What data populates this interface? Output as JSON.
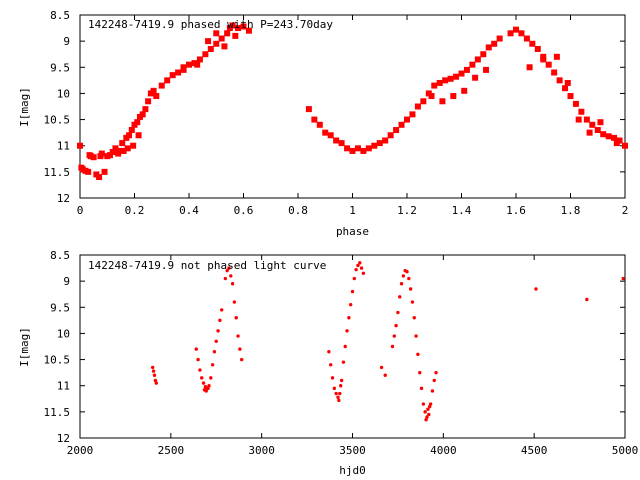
{
  "chart_data": [
    {
      "type": "scatter",
      "title": "142248-7419.9 phased with P=243.70day",
      "xlabel": "phase",
      "ylabel": "I[mag]",
      "xlim": [
        0,
        2
      ],
      "ylim": [
        12,
        8.5
      ],
      "y_inverted": true,
      "grid": false,
      "marker_color": "#ff0000",
      "xticks": [
        "0",
        "0.2",
        "0.4",
        "0.6",
        "0.8",
        "1",
        "1.2",
        "1.4",
        "1.6",
        "1.8",
        "2"
      ],
      "yticks": [
        "8.5",
        "9",
        "9.5",
        "10",
        "10.5",
        "11",
        "11.5",
        "12"
      ],
      "series": [
        {
          "points": [
            [
              0.0,
              11.0
            ],
            [
              0.005,
              11.42
            ],
            [
              0.01,
              11.45
            ],
            [
              0.02,
              11.48
            ],
            [
              0.03,
              11.5
            ],
            [
              0.035,
              11.18
            ],
            [
              0.04,
              11.2
            ],
            [
              0.05,
              11.22
            ],
            [
              0.06,
              11.55
            ],
            [
              0.07,
              11.6
            ],
            [
              0.075,
              11.2
            ],
            [
              0.08,
              11.15
            ],
            [
              0.09,
              11.5
            ],
            [
              0.1,
              11.2
            ],
            [
              0.11,
              11.18
            ],
            [
              0.12,
              11.12
            ],
            [
              0.13,
              11.05
            ],
            [
              0.14,
              11.15
            ],
            [
              0.15,
              11.1
            ],
            [
              0.155,
              10.95
            ],
            [
              0.16,
              11.1
            ],
            [
              0.17,
              10.85
            ],
            [
              0.175,
              11.05
            ],
            [
              0.18,
              10.8
            ],
            [
              0.19,
              10.7
            ],
            [
              0.195,
              11.0
            ],
            [
              0.2,
              10.6
            ],
            [
              0.21,
              10.55
            ],
            [
              0.215,
              10.8
            ],
            [
              0.22,
              10.45
            ],
            [
              0.23,
              10.4
            ],
            [
              0.24,
              10.3
            ],
            [
              0.25,
              10.15
            ],
            [
              0.26,
              10.0
            ],
            [
              0.27,
              9.95
            ],
            [
              0.28,
              10.05
            ],
            [
              0.3,
              9.85
            ],
            [
              0.32,
              9.75
            ],
            [
              0.34,
              9.65
            ],
            [
              0.36,
              9.6
            ],
            [
              0.38,
              9.5
            ],
            [
              0.4,
              9.45
            ],
            [
              0.42,
              9.42
            ],
            [
              0.44,
              9.35
            ],
            [
              0.46,
              9.25
            ],
            [
              0.48,
              9.15
            ],
            [
              0.5,
              9.05
            ],
            [
              0.52,
              8.95
            ],
            [
              0.54,
              8.85
            ],
            [
              0.55,
              8.75
            ],
            [
              0.56,
              8.7
            ],
            [
              0.58,
              8.75
            ],
            [
              0.6,
              8.72
            ],
            [
              0.62,
              8.8
            ],
            [
              0.47,
              9.0
            ],
            [
              0.5,
              8.85
            ],
            [
              0.53,
              9.1
            ],
            [
              0.57,
              8.9
            ],
            [
              0.43,
              9.45
            ],
            [
              0.38,
              9.55
            ],
            [
              0.84,
              10.3
            ],
            [
              0.86,
              10.5
            ],
            [
              0.88,
              10.6
            ],
            [
              0.9,
              10.75
            ],
            [
              0.92,
              10.8
            ],
            [
              0.94,
              10.9
            ],
            [
              0.96,
              10.95
            ],
            [
              0.98,
              11.05
            ],
            [
              1.0,
              11.1
            ],
            [
              1.02,
              11.05
            ],
            [
              1.04,
              11.1
            ],
            [
              1.06,
              11.05
            ],
            [
              1.08,
              11.0
            ],
            [
              1.1,
              10.95
            ],
            [
              1.12,
              10.9
            ],
            [
              1.14,
              10.8
            ],
            [
              1.16,
              10.7
            ],
            [
              1.18,
              10.6
            ],
            [
              1.2,
              10.5
            ],
            [
              1.22,
              10.4
            ],
            [
              1.24,
              10.25
            ],
            [
              1.26,
              10.15
            ],
            [
              1.28,
              10.0
            ],
            [
              1.3,
              9.85
            ],
            [
              1.32,
              9.8
            ],
            [
              1.34,
              9.75
            ],
            [
              1.36,
              9.72
            ],
            [
              1.38,
              9.68
            ],
            [
              1.4,
              9.62
            ],
            [
              1.42,
              9.55
            ],
            [
              1.44,
              9.45
            ],
            [
              1.46,
              9.35
            ],
            [
              1.48,
              9.25
            ],
            [
              1.5,
              9.12
            ],
            [
              1.52,
              9.05
            ],
            [
              1.54,
              8.95
            ],
            [
              1.29,
              10.05
            ],
            [
              1.33,
              10.15
            ],
            [
              1.37,
              10.05
            ],
            [
              1.41,
              9.95
            ],
            [
              1.45,
              9.7
            ],
            [
              1.49,
              9.55
            ],
            [
              1.58,
              8.85
            ],
            [
              1.6,
              8.78
            ],
            [
              1.62,
              8.85
            ],
            [
              1.64,
              8.95
            ],
            [
              1.66,
              9.05
            ],
            [
              1.68,
              9.15
            ],
            [
              1.7,
              9.3
            ],
            [
              1.72,
              9.45
            ],
            [
              1.74,
              9.6
            ],
            [
              1.76,
              9.75
            ],
            [
              1.78,
              9.9
            ],
            [
              1.8,
              10.05
            ],
            [
              1.82,
              10.2
            ],
            [
              1.84,
              10.35
            ],
            [
              1.86,
              10.5
            ],
            [
              1.88,
              10.6
            ],
            [
              1.9,
              10.7
            ],
            [
              1.92,
              10.78
            ],
            [
              1.94,
              10.82
            ],
            [
              1.96,
              10.85
            ],
            [
              1.98,
              10.9
            ],
            [
              2.0,
              11.0
            ],
            [
              1.65,
              9.5
            ],
            [
              1.7,
              9.35
            ],
            [
              1.75,
              9.3
            ],
            [
              1.79,
              9.8
            ],
            [
              1.83,
              10.5
            ],
            [
              1.87,
              10.75
            ],
            [
              1.91,
              10.55
            ],
            [
              1.97,
              10.95
            ]
          ]
        }
      ]
    },
    {
      "type": "scatter",
      "title": "142248-7419.9 not phased light curve",
      "xlabel": "hjd0",
      "ylabel": "I[mag]",
      "xlim": [
        2000,
        5000
      ],
      "ylim": [
        12,
        8.5
      ],
      "y_inverted": true,
      "grid": false,
      "marker_color": "#ff0000",
      "xticks": [
        "2000",
        "2500",
        "3000",
        "3500",
        "4000",
        "4500",
        "5000"
      ],
      "yticks": [
        "8.5",
        "9",
        "9.5",
        "10",
        "10.5",
        "11",
        "11.5",
        "12"
      ],
      "series": [
        {
          "points": [
            [
              2400,
              10.65
            ],
            [
              2405,
              10.72
            ],
            [
              2410,
              10.8
            ],
            [
              2415,
              10.9
            ],
            [
              2420,
              10.95
            ],
            [
              2640,
              10.3
            ],
            [
              2650,
              10.5
            ],
            [
              2660,
              10.7
            ],
            [
              2670,
              10.85
            ],
            [
              2680,
              10.95
            ],
            [
              2690,
              11.02
            ],
            [
              2700,
              11.05
            ],
            [
              2710,
              11.0
            ],
            [
              2720,
              10.85
            ],
            [
              2730,
              10.6
            ],
            [
              2740,
              10.35
            ],
            [
              2750,
              10.15
            ],
            [
              2760,
              9.95
            ],
            [
              2770,
              9.75
            ],
            [
              2780,
              9.55
            ],
            [
              2800,
              8.95
            ],
            [
              2810,
              8.8
            ],
            [
              2820,
              8.75
            ],
            [
              2830,
              8.9
            ],
            [
              2840,
              9.05
            ],
            [
              2850,
              9.4
            ],
            [
              2860,
              9.7
            ],
            [
              2870,
              10.05
            ],
            [
              2880,
              10.3
            ],
            [
              2890,
              10.5
            ],
            [
              2685,
              11.08
            ],
            [
              2695,
              11.1
            ],
            [
              2705,
              11.05
            ],
            [
              3370,
              10.35
            ],
            [
              3380,
              10.6
            ],
            [
              3390,
              10.85
            ],
            [
              3400,
              11.05
            ],
            [
              3410,
              11.15
            ],
            [
              3420,
              11.22
            ],
            [
              3430,
              11.15
            ],
            [
              3440,
              10.9
            ],
            [
              3450,
              10.55
            ],
            [
              3460,
              10.25
            ],
            [
              3470,
              9.95
            ],
            [
              3480,
              9.7
            ],
            [
              3490,
              9.45
            ],
            [
              3500,
              9.2
            ],
            [
              3510,
              8.95
            ],
            [
              3520,
              8.78
            ],
            [
              3530,
              8.7
            ],
            [
              3540,
              8.65
            ],
            [
              3550,
              8.75
            ],
            [
              3560,
              8.85
            ],
            [
              3425,
              11.28
            ],
            [
              3435,
              11.0
            ],
            [
              3660,
              10.65
            ],
            [
              3680,
              10.8
            ],
            [
              3720,
              10.25
            ],
            [
              3730,
              10.05
            ],
            [
              3740,
              9.85
            ],
            [
              3750,
              9.6
            ],
            [
              3760,
              9.3
            ],
            [
              3770,
              9.05
            ],
            [
              3780,
              8.9
            ],
            [
              3790,
              8.8
            ],
            [
              3800,
              8.82
            ],
            [
              3810,
              8.95
            ],
            [
              3820,
              9.15
            ],
            [
              3830,
              9.4
            ],
            [
              3840,
              9.7
            ],
            [
              3850,
              10.05
            ],
            [
              3860,
              10.4
            ],
            [
              3870,
              10.75
            ],
            [
              3880,
              11.05
            ],
            [
              3890,
              11.35
            ],
            [
              3900,
              11.5
            ],
            [
              3910,
              11.6
            ],
            [
              3920,
              11.55
            ],
            [
              3930,
              11.35
            ],
            [
              3940,
              11.1
            ],
            [
              3950,
              10.9
            ],
            [
              3960,
              10.75
            ],
            [
              3905,
              11.65
            ],
            [
              3915,
              11.45
            ],
            [
              3925,
              11.4
            ],
            [
              4510,
              9.15
            ],
            [
              4790,
              9.35
            ],
            [
              4990,
              8.95
            ]
          ]
        }
      ]
    }
  ]
}
